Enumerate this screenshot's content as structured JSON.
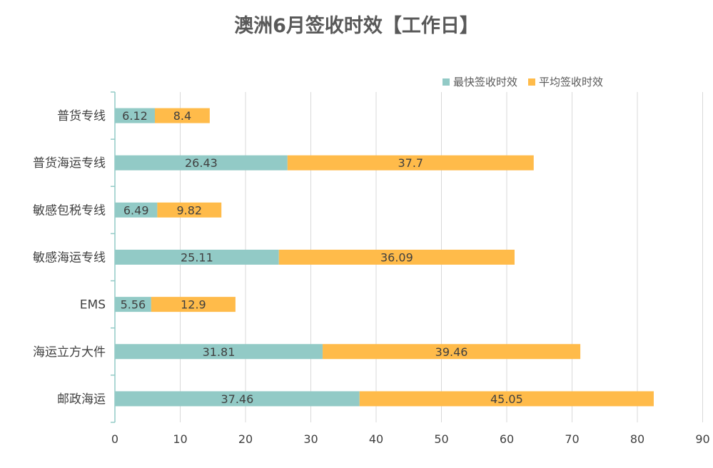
{
  "chart_data": {
    "type": "bar",
    "orientation": "horizontal",
    "stacked": true,
    "title": "澳洲6月签收时效【工作日】",
    "categories": [
      "普货专线",
      "普货海运专线",
      "敏感包税专线",
      "敏感海运专线",
      "EMS",
      "海运立方大件",
      "邮政海运"
    ],
    "series": [
      {
        "name": "最快签收时效",
        "color": "#92CAC6",
        "values": [
          6.12,
          26.43,
          6.49,
          25.11,
          5.56,
          31.81,
          37.46
        ]
      },
      {
        "name": "平均签收时效",
        "color": "#FFBB4A",
        "values": [
          8.4,
          37.7,
          9.82,
          36.09,
          12.9,
          39.46,
          45.05
        ]
      }
    ],
    "data_labels": [
      [
        "6.12",
        "26.43",
        "6.49",
        "25.11",
        "5.56",
        "31.81",
        "37.46"
      ],
      [
        "8.4",
        "37.7",
        "9.82",
        "36.09",
        "12.9",
        "39.46",
        "45.05"
      ]
    ],
    "xlim": [
      0,
      90
    ],
    "xticks": [
      0,
      10,
      20,
      30,
      40,
      50,
      60,
      70,
      80,
      90
    ],
    "grid": true,
    "legend_position": "top-right",
    "axis_color": "#92CAC6",
    "grid_color": "#D9D9D9"
  }
}
